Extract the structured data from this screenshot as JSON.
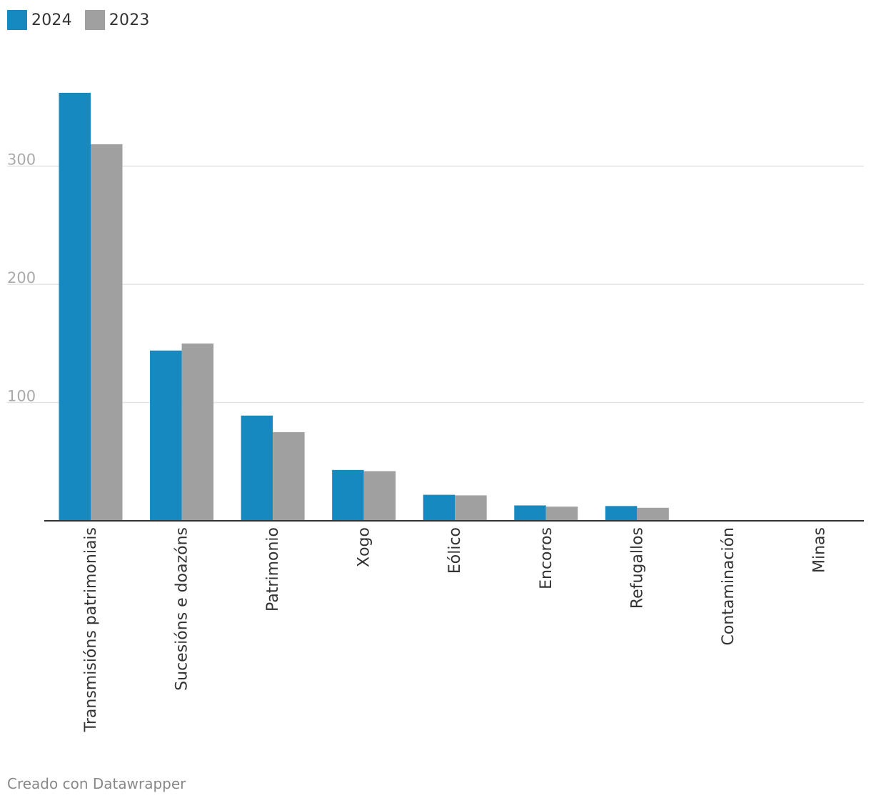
{
  "legend": [
    {
      "label": "2024",
      "color": "#1689c1"
    },
    {
      "label": "2023",
      "color": "#a0a0a0"
    }
  ],
  "footer": {
    "credit": "Creado con Datawrapper"
  },
  "chart_data": {
    "type": "bar",
    "categories": [
      "Transmisións patrimoniais",
      "Sucesións e doazóns",
      "Patrimonio",
      "Xogo",
      "Eólico",
      "Encoros",
      "Refugallos",
      "Contaminación",
      "Minas"
    ],
    "series": [
      {
        "name": "2024",
        "color": "#1689c1",
        "values": [
          362,
          144,
          89,
          43,
          22,
          13,
          12.5,
          0,
          0
        ]
      },
      {
        "name": "2023",
        "color": "#a0a0a0",
        "values": [
          318.5,
          150,
          75,
          42,
          21.5,
          12,
          11,
          0,
          0
        ]
      }
    ],
    "yticks": [
      100,
      200,
      300
    ],
    "ylim": [
      0,
      380
    ],
    "grid": true,
    "legend_position": "top-left"
  }
}
